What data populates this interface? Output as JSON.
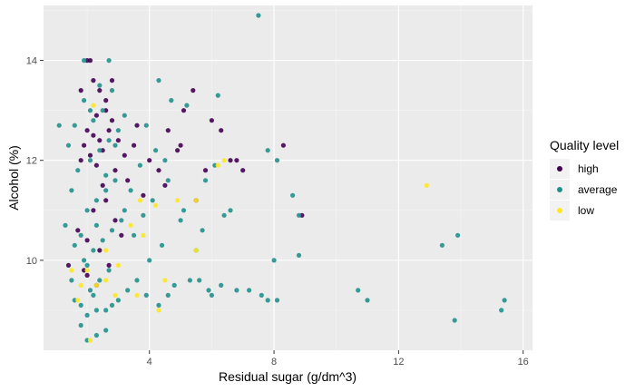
{
  "chart_data": {
    "type": "scatter",
    "xlabel": "Residual sugar (g/dm^3)",
    "ylabel": "Alcohol (%)",
    "xlim": [
      0.6,
      16.3
    ],
    "ylim": [
      8.2,
      15.1
    ],
    "x_ticks": [
      4,
      8,
      12,
      16
    ],
    "y_ticks": [
      10,
      12,
      14
    ],
    "x_tick_labels": [
      "4",
      "8",
      "12",
      "16"
    ],
    "y_tick_labels": [
      "10",
      "12",
      "14"
    ],
    "grid": true,
    "legend_position": "right",
    "legend": {
      "title": "Quality level",
      "entries": [
        {
          "name": "high",
          "color": "#440154"
        },
        {
          "name": "average",
          "color": "#21908C"
        },
        {
          "name": "low",
          "color": "#FDE725"
        }
      ]
    },
    "series": [
      {
        "name": "high",
        "color": "#440154",
        "points": [
          [
            2.0,
            14.0
          ],
          [
            2.1,
            14.0
          ],
          [
            2.2,
            13.6
          ],
          [
            2.4,
            13.4
          ],
          [
            2.6,
            13.2
          ],
          [
            1.8,
            13.4
          ],
          [
            2.3,
            12.9
          ],
          [
            2.6,
            13.0
          ],
          [
            2.8,
            12.8
          ],
          [
            2.0,
            12.6
          ],
          [
            2.2,
            12.5
          ],
          [
            2.4,
            12.4
          ],
          [
            1.9,
            12.3
          ],
          [
            2.5,
            12.2
          ],
          [
            2.7,
            12.6
          ],
          [
            3.0,
            12.4
          ],
          [
            2.1,
            12.1
          ],
          [
            2.3,
            11.9
          ],
          [
            2.9,
            11.8
          ],
          [
            3.2,
            12.1
          ],
          [
            3.5,
            12.3
          ],
          [
            4.0,
            12.0
          ],
          [
            4.3,
            11.8
          ],
          [
            4.6,
            12.6
          ],
          [
            5.0,
            12.3
          ],
          [
            5.1,
            13.0
          ],
          [
            5.4,
            13.4
          ],
          [
            6.0,
            12.8
          ],
          [
            6.3,
            12.6
          ],
          [
            6.6,
            12.0
          ],
          [
            7.0,
            11.8
          ],
          [
            8.3,
            12.3
          ],
          [
            6.8,
            12.0
          ],
          [
            8.9,
            10.9
          ],
          [
            5.8,
            11.8
          ],
          [
            5.5,
            11.2
          ],
          [
            4.5,
            11.5
          ],
          [
            3.8,
            11.3
          ],
          [
            3.3,
            11.6
          ],
          [
            2.6,
            11.2
          ],
          [
            2.2,
            11.0
          ],
          [
            2.9,
            10.8
          ],
          [
            3.1,
            10.5
          ],
          [
            2.0,
            10.4
          ],
          [
            2.4,
            10.2
          ],
          [
            2.7,
            9.9
          ],
          [
            1.9,
            9.8
          ],
          [
            2.3,
            9.5
          ],
          [
            1.8,
            12.0
          ],
          [
            2.5,
            11.5
          ],
          [
            3.6,
            12.7
          ],
          [
            4.9,
            12.2
          ],
          [
            2.8,
            13.6
          ],
          [
            1.4,
            9.9
          ],
          [
            1.7,
            10.6
          ],
          [
            2.0,
            9.7
          ]
        ]
      },
      {
        "name": "average",
        "color": "#21908C",
        "points": [
          [
            7.5,
            14.9
          ],
          [
            1.9,
            14.0
          ],
          [
            2.7,
            14.0
          ],
          [
            4.3,
            13.6
          ],
          [
            6.2,
            13.3
          ],
          [
            4.7,
            13.2
          ],
          [
            5.2,
            13.1
          ],
          [
            1.6,
            12.7
          ],
          [
            3.9,
            12.7
          ],
          [
            4.5,
            12.0
          ],
          [
            7.8,
            12.2
          ],
          [
            8.1,
            12.0
          ],
          [
            8.6,
            11.3
          ],
          [
            8.8,
            10.9
          ],
          [
            8.0,
            10.0
          ],
          [
            8.8,
            10.1
          ],
          [
            10.7,
            9.4
          ],
          [
            11.0,
            9.2
          ],
          [
            13.4,
            10.3
          ],
          [
            13.9,
            10.5
          ],
          [
            13.8,
            8.8
          ],
          [
            15.3,
            9.0
          ],
          [
            15.4,
            9.2
          ],
          [
            5.6,
            9.6
          ],
          [
            5.9,
            9.4
          ],
          [
            6.3,
            9.5
          ],
          [
            6.8,
            9.4
          ],
          [
            7.2,
            9.4
          ],
          [
            7.6,
            9.3
          ],
          [
            7.8,
            9.2
          ],
          [
            8.1,
            9.2
          ],
          [
            4.8,
            9.5
          ],
          [
            5.3,
            9.6
          ],
          [
            6.0,
            9.3
          ],
          [
            5.5,
            10.2
          ],
          [
            5.7,
            10.6
          ],
          [
            6.4,
            10.9
          ],
          [
            6.6,
            11.0
          ],
          [
            5.0,
            10.8
          ],
          [
            4.4,
            10.3
          ],
          [
            4.0,
            10.0
          ],
          [
            3.6,
            9.6
          ],
          [
            3.3,
            9.4
          ],
          [
            3.0,
            9.2
          ],
          [
            2.8,
            9.1
          ],
          [
            2.6,
            9.0
          ],
          [
            2.3,
            9.0
          ],
          [
            2.0,
            8.9
          ],
          [
            1.8,
            8.7
          ],
          [
            2.0,
            8.4
          ],
          [
            2.3,
            8.5
          ],
          [
            2.6,
            8.6
          ],
          [
            1.8,
            9.1
          ],
          [
            2.1,
            9.4
          ],
          [
            2.4,
            9.6
          ],
          [
            2.7,
            9.8
          ],
          [
            1.9,
            10.0
          ],
          [
            2.2,
            10.2
          ],
          [
            2.5,
            10.4
          ],
          [
            2.8,
            10.6
          ],
          [
            3.1,
            10.8
          ],
          [
            2.0,
            11.0
          ],
          [
            2.3,
            11.2
          ],
          [
            2.6,
            11.4
          ],
          [
            2.9,
            11.6
          ],
          [
            1.7,
            11.8
          ],
          [
            2.1,
            12.0
          ],
          [
            2.4,
            12.2
          ],
          [
            2.7,
            12.4
          ],
          [
            3.0,
            12.6
          ],
          [
            2.2,
            12.8
          ],
          [
            2.5,
            13.0
          ],
          [
            1.9,
            13.2
          ],
          [
            2.8,
            13.4
          ],
          [
            3.2,
            11.0
          ],
          [
            3.5,
            10.5
          ],
          [
            3.8,
            10.9
          ],
          [
            4.1,
            11.2
          ],
          [
            3.4,
            11.4
          ],
          [
            3.7,
            11.9
          ],
          [
            4.2,
            12.2
          ],
          [
            4.6,
            11.6
          ],
          [
            5.1,
            11.0
          ],
          [
            5.8,
            11.6
          ],
          [
            6.1,
            11.9
          ],
          [
            3.9,
            9.3
          ],
          [
            4.3,
            9.1
          ],
          [
            4.6,
            9.3
          ],
          [
            1.5,
            9.6
          ],
          [
            1.6,
            10.3
          ],
          [
            1.3,
            10.7
          ],
          [
            1.1,
            12.7
          ],
          [
            1.4,
            12.3
          ],
          [
            1.5,
            11.4
          ],
          [
            1.6,
            9.2
          ],
          [
            2.0,
            9.9
          ],
          [
            2.3,
            10.7
          ],
          [
            2.6,
            11.7
          ],
          [
            2.9,
            12.3
          ],
          [
            3.2,
            12.9
          ],
          [
            2.1,
            13.0
          ],
          [
            2.4,
            13.5
          ],
          [
            1.8,
            10.5
          ],
          [
            2.2,
            9.3
          ]
        ]
      },
      {
        "name": "low",
        "color": "#FDE725",
        "points": [
          [
            12.9,
            11.5
          ],
          [
            6.2,
            11.9
          ],
          [
            6.4,
            12.0
          ],
          [
            5.5,
            11.2
          ],
          [
            4.9,
            11.2
          ],
          [
            4.2,
            11.1
          ],
          [
            3.7,
            11.2
          ],
          [
            4.5,
            9.6
          ],
          [
            4.3,
            9.0
          ],
          [
            2.1,
            8.4
          ],
          [
            2.6,
            9.6
          ],
          [
            2.3,
            9.5
          ],
          [
            2.0,
            9.8
          ],
          [
            1.8,
            9.5
          ],
          [
            1.7,
            9.2
          ],
          [
            1.5,
            9.8
          ],
          [
            3.0,
            9.9
          ],
          [
            3.4,
            10.7
          ],
          [
            3.8,
            10.5
          ],
          [
            2.2,
            13.1
          ],
          [
            2.6,
            10.2
          ],
          [
            3.6,
            9.3
          ],
          [
            5.5,
            10.2
          ],
          [
            2.9,
            9.3
          ]
        ]
      }
    ]
  }
}
